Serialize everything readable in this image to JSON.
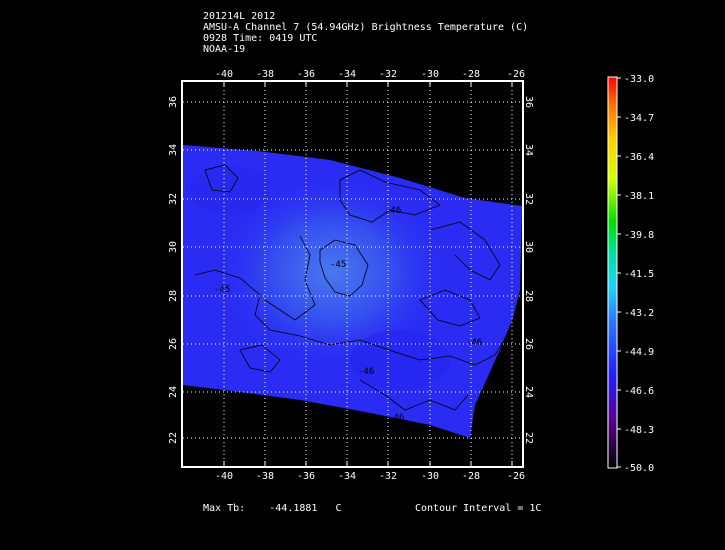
{
  "header": {
    "line1": "201214L 2012",
    "line2": "AMSU-A Channel 7 (54.94GHz) Brightness Temperature (C)",
    "line3": "0928 Time: 0419 UTC",
    "line4": "NOAA-19"
  },
  "axes": {
    "lon_ticks": [
      "-40",
      "-38",
      "-36",
      "-34",
      "-32",
      "-30",
      "-28",
      "-26"
    ],
    "lat_ticks": [
      "36",
      "34",
      "32",
      "30",
      "28",
      "26",
      "24",
      "22"
    ]
  },
  "contour_labels": [
    "-46",
    "-45",
    "-45",
    "-46",
    "-46",
    "-46"
  ],
  "colorbar": {
    "labels": [
      "-33.0",
      "-34.7",
      "-36.4",
      "-38.1",
      "-39.8",
      "-41.5",
      "-43.2",
      "-44.9",
      "-46.6",
      "-48.3",
      "-50.0"
    ]
  },
  "footer": {
    "max_label": "Max Tb:",
    "max_value": "-44.1881",
    "max_unit": "C",
    "interval_text": "Contour Interval = 1C"
  },
  "colors": {
    "swath_main": "#2a2cf4",
    "swath_warm": "#3a60ee",
    "grid": "#ffffff",
    "frame": "#ffffff"
  }
}
